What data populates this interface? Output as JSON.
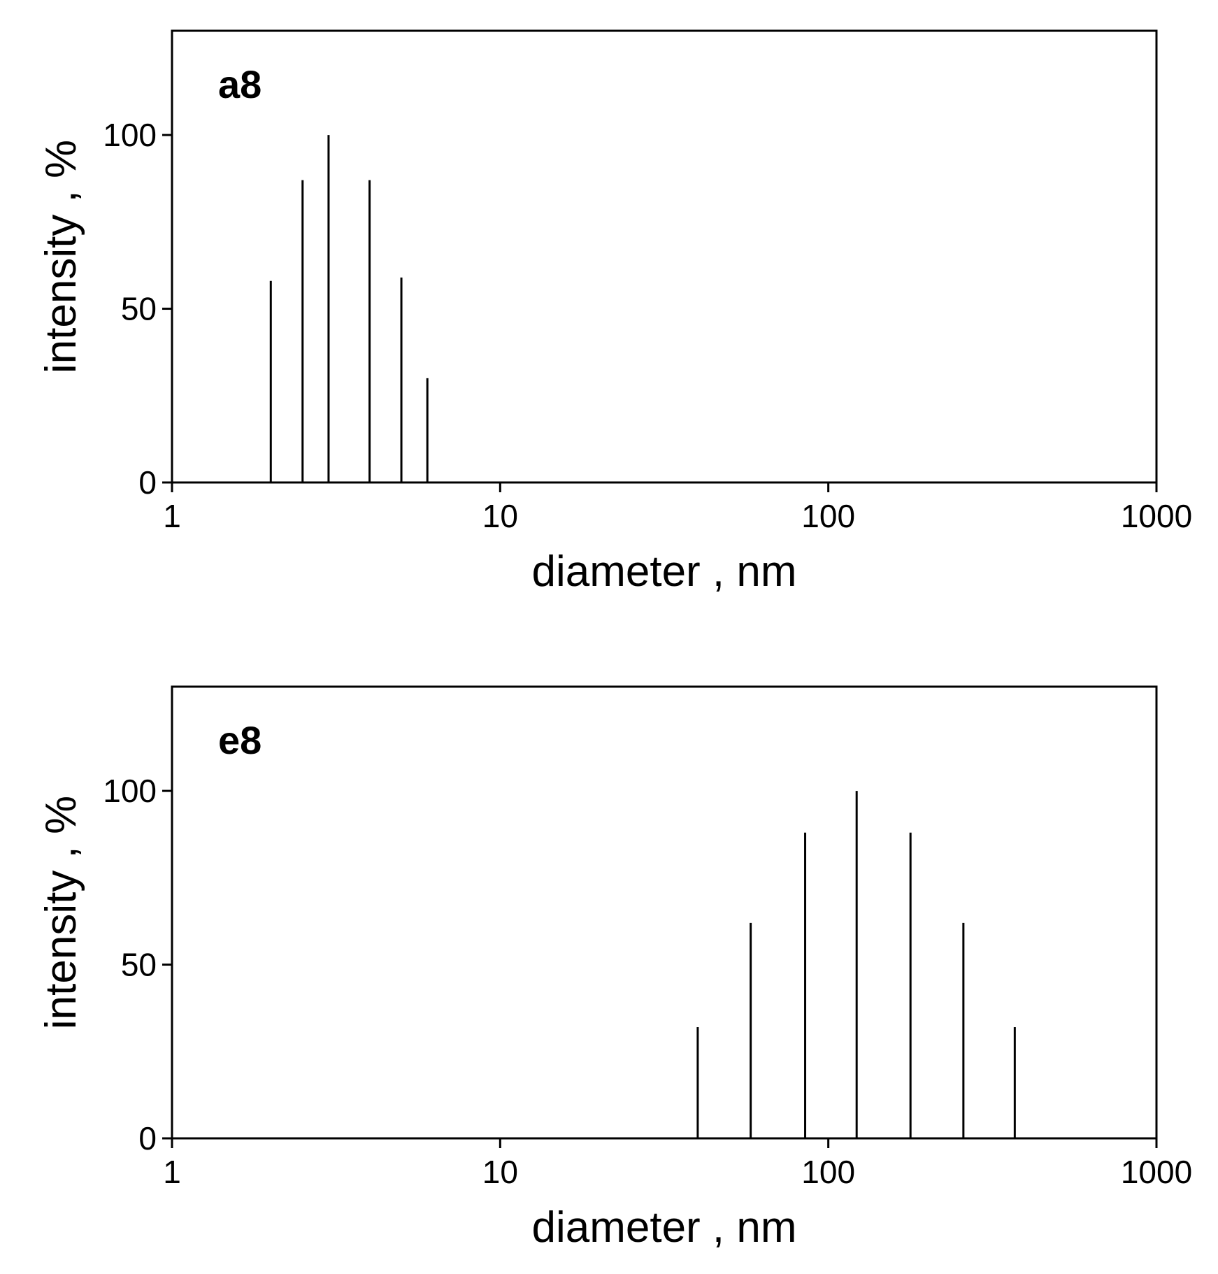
{
  "chart_data": [
    {
      "type": "bar",
      "panel_label": "a8",
      "xlabel": "diameter , nm",
      "ylabel": "intensity , %",
      "x_scale": "log",
      "xlim": [
        1,
        1000
      ],
      "ylim": [
        0,
        130
      ],
      "x_ticks": [
        1,
        10,
        100,
        1000
      ],
      "x_tick_labels": [
        "1",
        "10",
        "100",
        "1000"
      ],
      "y_ticks": [
        0,
        50,
        100
      ],
      "y_tick_labels": [
        "0",
        "50",
        "100"
      ],
      "grid": false,
      "x": [
        2.0,
        2.5,
        3.0,
        4.0,
        5.0,
        6.0
      ],
      "values": [
        58,
        87,
        100,
        87,
        59,
        30
      ]
    },
    {
      "type": "bar",
      "panel_label": "e8",
      "xlabel": "diameter , nm",
      "ylabel": "intensity , %",
      "x_scale": "log",
      "xlim": [
        1,
        1000
      ],
      "ylim": [
        0,
        130
      ],
      "x_ticks": [
        1,
        10,
        100,
        1000
      ],
      "x_tick_labels": [
        "1",
        "10",
        "100",
        "1000"
      ],
      "y_ticks": [
        0,
        50,
        100
      ],
      "y_tick_labels": [
        "0",
        "50",
        "100"
      ],
      "grid": false,
      "x": [
        40,
        58,
        85,
        122,
        178,
        258,
        370
      ],
      "values": [
        32,
        62,
        88,
        100,
        88,
        62,
        32
      ]
    }
  ]
}
